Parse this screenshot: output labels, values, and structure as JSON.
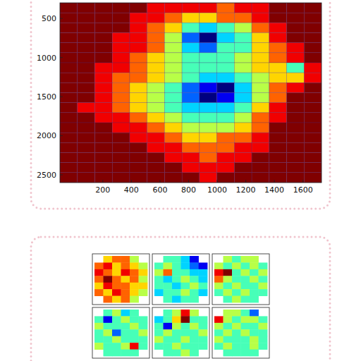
{
  "chart_data": [
    {
      "type": "heatmap",
      "xlim": [
        -100,
        1730
      ],
      "ylim": [
        300,
        2600
      ],
      "xticks": [
        200,
        400,
        600,
        800,
        1000,
        1200,
        1400,
        1600
      ],
      "yticks": [
        500,
        1000,
        1500,
        2000,
        2500
      ],
      "clim": [
        0,
        9
      ],
      "grid": true,
      "cells": [
        [
          9,
          9,
          9,
          9,
          9,
          8,
          8,
          8,
          8,
          7,
          8,
          8,
          9,
          9,
          9
        ],
        [
          9,
          9,
          9,
          9,
          8,
          8,
          7,
          6,
          6,
          7,
          7,
          8,
          9,
          9,
          9
        ],
        [
          9,
          9,
          9,
          9,
          8,
          7,
          6,
          4,
          3,
          4,
          5,
          7,
          8,
          9,
          9
        ],
        [
          9,
          9,
          9,
          8,
          8,
          7,
          5,
          2,
          0,
          3,
          4,
          6,
          8,
          9,
          9
        ],
        [
          9,
          9,
          9,
          8,
          8,
          7,
          5,
          3,
          2,
          4,
          4,
          6,
          7,
          8,
          9
        ],
        [
          9,
          9,
          9,
          8,
          7,
          6,
          5,
          4,
          4,
          4,
          5,
          6,
          7,
          8,
          9
        ],
        [
          9,
          9,
          8,
          8,
          7,
          6,
          5,
          4,
          4,
          4,
          5,
          6,
          6,
          4,
          8
        ],
        [
          9,
          9,
          8,
          7,
          7,
          6,
          5,
          4,
          3,
          3,
          4,
          5,
          6,
          6,
          8
        ],
        [
          9,
          9,
          8,
          7,
          6,
          5,
          4,
          2,
          1,
          0,
          3,
          5,
          7,
          8,
          9
        ],
        [
          9,
          9,
          8,
          7,
          6,
          5,
          4,
          2,
          0,
          1,
          3,
          5,
          7,
          9,
          9
        ],
        [
          9,
          8,
          8,
          7,
          6,
          5,
          4,
          3,
          3,
          3,
          4,
          6,
          8,
          9,
          9
        ],
        [
          9,
          9,
          8,
          8,
          7,
          6,
          5,
          4,
          4,
          4,
          5,
          7,
          8,
          9,
          9
        ],
        [
          9,
          9,
          9,
          8,
          8,
          7,
          6,
          5,
          5,
          5,
          6,
          7,
          9,
          9,
          9
        ],
        [
          9,
          9,
          9,
          9,
          8,
          8,
          7,
          6,
          6,
          7,
          7,
          8,
          9,
          9,
          9
        ],
        [
          9,
          9,
          9,
          9,
          9,
          8,
          8,
          7,
          7,
          7,
          8,
          8,
          9,
          9,
          9
        ],
        [
          9,
          9,
          9,
          9,
          9,
          9,
          8,
          8,
          7,
          8,
          8,
          9,
          9,
          9,
          9
        ],
        [
          9,
          9,
          9,
          9,
          9,
          9,
          9,
          8,
          8,
          8,
          9,
          9,
          9,
          9,
          9
        ],
        [
          9,
          9,
          9,
          9,
          9,
          9,
          9,
          9,
          8,
          9,
          9,
          9,
          9,
          9,
          9
        ]
      ]
    },
    {
      "type": "multiples",
      "clim": [
        0,
        9
      ],
      "tick_labels": false,
      "panels": [
        {
          "cells": [
            [
              null,
              6,
              7,
              7,
              5,
              null
            ],
            [
              7,
              8,
              6,
              7,
              6,
              5
            ],
            [
              8,
              7,
              6,
              8,
              7,
              6
            ],
            [
              7,
              9,
              7,
              6,
              7,
              5
            ],
            [
              6,
              8,
              7,
              7,
              6,
              6
            ],
            [
              7,
              6,
              8,
              7,
              6,
              5
            ],
            [
              null,
              7,
              6,
              7,
              5,
              null
            ]
          ]
        },
        {
          "cells": [
            [
              null,
              4,
              4,
              3,
              1,
              null
            ],
            [
              4,
              5,
              4,
              3,
              2,
              1
            ],
            [
              5,
              7,
              4,
              4,
              3,
              3
            ],
            [
              4,
              3,
              4,
              5,
              4,
              3
            ],
            [
              4,
              4,
              3,
              4,
              5,
              4
            ],
            [
              3,
              4,
              4,
              5,
              4,
              3
            ],
            [
              null,
              4,
              3,
              4,
              4,
              null
            ]
          ]
        },
        {
          "cells": [
            [
              null,
              5,
              4,
              5,
              5,
              null
            ],
            [
              5,
              4,
              5,
              4,
              5,
              4
            ],
            [
              8,
              9,
              4,
              5,
              4,
              5
            ],
            [
              7,
              5,
              4,
              4,
              5,
              4
            ],
            [
              5,
              4,
              5,
              4,
              4,
              5
            ],
            [
              4,
              5,
              4,
              5,
              4,
              4
            ],
            [
              null,
              4,
              5,
              4,
              4,
              null
            ]
          ]
        },
        {
          "cells": [
            [
              null,
              4,
              5,
              3,
              4,
              null
            ],
            [
              4,
              1,
              4,
              5,
              4,
              4
            ],
            [
              5,
              4,
              4,
              4,
              5,
              4
            ],
            [
              4,
              5,
              2,
              4,
              4,
              5
            ],
            [
              4,
              4,
              5,
              4,
              4,
              4
            ],
            [
              5,
              4,
              4,
              5,
              8,
              4
            ],
            [
              null,
              4,
              4,
              4,
              4,
              null
            ]
          ]
        },
        {
          "cells": [
            [
              null,
              4,
              5,
              8,
              5,
              null
            ],
            [
              3,
              4,
              6,
              9,
              4,
              4
            ],
            [
              4,
              1,
              5,
              4,
              5,
              4
            ],
            [
              4,
              5,
              4,
              4,
              4,
              5
            ],
            [
              5,
              4,
              4,
              5,
              4,
              4
            ],
            [
              4,
              4,
              5,
              4,
              4,
              4
            ],
            [
              null,
              4,
              4,
              5,
              4,
              null
            ]
          ]
        },
        {
          "cells": [
            [
              null,
              5,
              5,
              4,
              2,
              null
            ],
            [
              8,
              5,
              4,
              5,
              5,
              4
            ],
            [
              5,
              4,
              5,
              4,
              4,
              5
            ],
            [
              4,
              5,
              4,
              5,
              4,
              4
            ],
            [
              5,
              4,
              4,
              4,
              5,
              4
            ],
            [
              4,
              5,
              4,
              4,
              5,
              4
            ],
            [
              null,
              4,
              4,
              4,
              4,
              null
            ]
          ]
        }
      ]
    }
  ]
}
